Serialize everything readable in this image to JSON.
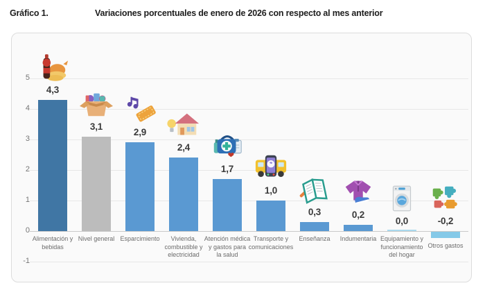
{
  "header": {
    "figure_label": "Gráfico 1.",
    "title": "Variaciones porcentuales de enero de 2026 con respecto al mes anterior"
  },
  "chart_data": {
    "type": "bar",
    "title": "Variaciones porcentuales de enero de 2026 con respecto al mes anterior",
    "categories": [
      "Alimentación y\nbebidas",
      "Nivel general",
      "Esparcimiento",
      "Vivienda,\ncombustible y\nelectricidad",
      "Atención médica\ny gastos para\nla salud",
      "Transporte y\ncomunicaciones",
      "Enseñanza",
      "Indumentaria",
      "Equipamiento y\nfuncionamiento\ndel hogar",
      "Otros gastos"
    ],
    "values": [
      4.3,
      3.1,
      2.9,
      2.4,
      1.7,
      1.0,
      0.3,
      0.2,
      0.0,
      -0.2
    ],
    "value_labels": [
      "4,3",
      "3,1",
      "2,9",
      "2,4",
      "1,7",
      "1,0",
      "0,3",
      "0,2",
      "0,0",
      "-0,2"
    ],
    "bar_colors": [
      "#4076a4",
      "#bcbcbc",
      "#5a99d2",
      "#5a99d2",
      "#5a99d2",
      "#5a99d2",
      "#5a99d2",
      "#5a99d2",
      "#a9d9ee",
      "#85c9e8"
    ],
    "icons": [
      "food-drink-icon",
      "general-level-box-icon",
      "entertainment-ticket-icon",
      "housing-utilities-icon",
      "healthcare-icon",
      "transport-communications-icon",
      "education-book-icon",
      "clothing-icon",
      "home-equipment-icon",
      "other-expenses-puzzle-icon"
    ],
    "yticks": [
      5,
      4,
      3,
      2,
      1,
      0,
      -1
    ],
    "ylim": [
      -1.5,
      6
    ],
    "xlabel": "",
    "ylabel": "",
    "grid": true,
    "legend": false
  }
}
